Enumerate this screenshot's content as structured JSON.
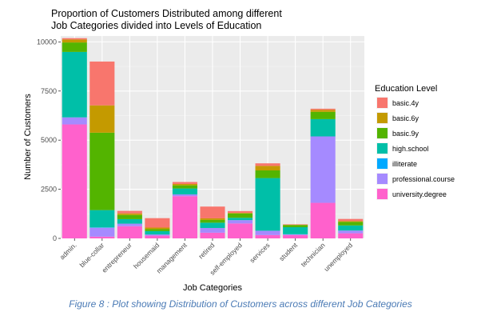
{
  "caption": "Figure 8 : Plot showing Distribution of Customers across different Job Categories",
  "chart_data": {
    "type": "bar",
    "stacked": true,
    "title_lines": [
      "Proportion of Customers Distributed among different",
      "Job Categories divided into Levels of Education"
    ],
    "xlabel": "Job Categories",
    "ylabel": "Number of Customers",
    "ylim": [
      0,
      10300
    ],
    "yticks": [
      0,
      2500,
      5000,
      7500,
      10000
    ],
    "grid": true,
    "legend_placement": "right",
    "legend_title": "Education Level",
    "categories": [
      "admin.",
      "blue-collar",
      "entrepreneur",
      "housemaid",
      "management",
      "retired",
      "self-employed",
      "services",
      "student",
      "technician",
      "unemployed"
    ],
    "series": [
      {
        "name": "university.degree",
        "color": "#FF61CC",
        "values": [
          5800,
          90,
          620,
          140,
          2150,
          290,
          760,
          170,
          170,
          1810,
          260
        ]
      },
      {
        "name": "professional.course",
        "color": "#A58AFF",
        "values": [
          360,
          450,
          130,
          60,
          90,
          240,
          170,
          220,
          40,
          3380,
          140
        ]
      },
      {
        "name": "illiterate",
        "color": "#00A9FF",
        "values": [
          0,
          20,
          0,
          0,
          0,
          0,
          0,
          0,
          0,
          0,
          0
        ]
      },
      {
        "name": "high.school",
        "color": "#00BFA8",
        "values": [
          3330,
          880,
          230,
          170,
          300,
          270,
          120,
          2680,
          360,
          880,
          260
        ]
      },
      {
        "name": "basic.9y",
        "color": "#53B400",
        "values": [
          480,
          3940,
          210,
          100,
          160,
          140,
          220,
          390,
          110,
          370,
          180
        ]
      },
      {
        "name": "basic.6y",
        "color": "#C49A00",
        "values": [
          150,
          1390,
          80,
          80,
          70,
          80,
          30,
          230,
          20,
          100,
          40
        ]
      },
      {
        "name": "basic.4y",
        "color": "#F8766D",
        "values": [
          70,
          2230,
          130,
          480,
          100,
          600,
          90,
          130,
          20,
          60,
          110
        ]
      }
    ]
  }
}
